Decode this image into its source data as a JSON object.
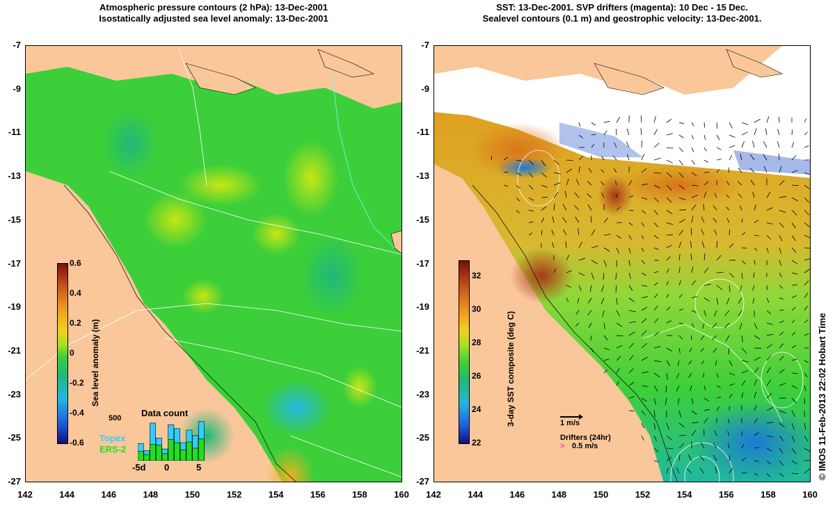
{
  "left_panel": {
    "title_line1": "Atmospheric pressure contours (2 hPa): 13-Dec-2001",
    "title_line2": "Isostatically adjusted sea level anomaly: 13-Dec-2001",
    "x_ticks": [
      "142",
      "144",
      "146",
      "148",
      "150",
      "152",
      "154",
      "156",
      "158",
      "160"
    ],
    "y_ticks": [
      "-7",
      "-9",
      "-11",
      "-13",
      "-15",
      "-17",
      "-19",
      "-21",
      "-23",
      "-25",
      "-27"
    ],
    "colorbar": {
      "label": "Sea level anomaly (m)",
      "ticks": [
        "0.6",
        "0.4",
        "0.2",
        "0",
        "-0.2",
        "-0.4",
        "-0.6"
      ]
    },
    "histogram": {
      "title": "Data count",
      "y_tick": "500",
      "x_ticks": [
        "-5d",
        "0",
        "5"
      ],
      "legend_topex": "Topex",
      "legend_ers2": "ERS-2",
      "topex_color": "#33ccff",
      "ers2_color": "#22dd22",
      "bars_total": [
        220,
        130,
        480,
        290,
        150,
        460,
        410,
        230,
        390,
        320,
        500
      ],
      "bars_ers2": [
        120,
        80,
        210,
        200,
        90,
        270,
        230,
        140,
        240,
        160,
        280
      ]
    }
  },
  "right_panel": {
    "title_line1": "SST: 13-Dec-2001. SVP drifters (magenta): 10 Dec - 15 Dec.",
    "title_line2": "Sealevel contours (0.1 m) and geostrophic velocity: 13-Dec-2001.",
    "x_ticks": [
      "142",
      "144",
      "146",
      "148",
      "150",
      "152",
      "154",
      "156",
      "158",
      "160"
    ],
    "y_ticks": [
      "-7",
      "-9",
      "-11",
      "-13",
      "-15",
      "-17",
      "-19",
      "-21",
      "-23",
      "-25",
      "-27"
    ],
    "colorbar": {
      "label": "3-day SST composite (deg C)",
      "ticks": [
        "32",
        "30",
        "28",
        "26",
        "24",
        "22"
      ]
    },
    "scale_arrow_label": "1 m/s",
    "drifters_label": "Drifters (24hr)",
    "drifter_speed_label": "0.5 m/s",
    "drifter_color": "#ff33cc"
  },
  "credit": "© IMOS 11-Feb-2013 22:02 Hobart Time",
  "colors": {
    "land": "#f9c79a",
    "ocean_base": "#3ccf3a"
  }
}
